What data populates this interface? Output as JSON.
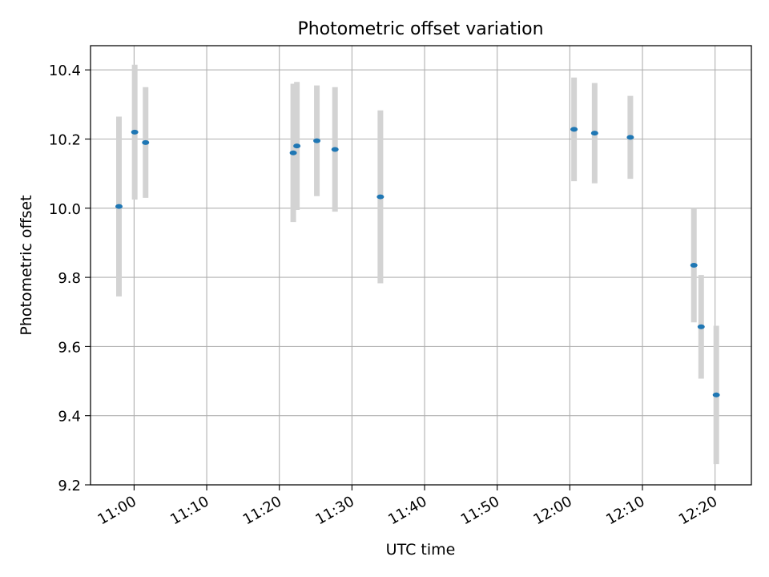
{
  "chart_data": {
    "type": "scatter",
    "title": "Photometric offset variation",
    "xlabel": "UTC time",
    "ylabel": "Photometric offset",
    "x_unit": "time (HH:MM)",
    "xlim": [
      "10:54",
      "12:25"
    ],
    "ylim": [
      9.2,
      10.47
    ],
    "x_ticks": [
      "11:00",
      "11:10",
      "11:20",
      "11:30",
      "11:40",
      "11:50",
      "12:00",
      "12:10",
      "12:20"
    ],
    "y_ticks": [
      "9.2",
      "9.4",
      "9.6",
      "9.8",
      "10.0",
      "10.2",
      "10.4"
    ],
    "grid": true,
    "series": [
      {
        "color": "#1f77b4",
        "errorbar_color": "#d3d3d3",
        "points": [
          {
            "x": "10:57:55",
            "y": 10.005,
            "yerr": 0.26
          },
          {
            "x": "11:00:05",
            "y": 10.22,
            "yerr": 0.195
          },
          {
            "x": "11:01:35",
            "y": 10.19,
            "yerr": 0.16
          },
          {
            "x": "11:21:55",
            "y": 10.16,
            "yerr": 0.2
          },
          {
            "x": "11:22:25",
            "y": 10.18,
            "yerr": 0.185
          },
          {
            "x": "11:25:10",
            "y": 10.195,
            "yerr": 0.16
          },
          {
            "x": "11:27:40",
            "y": 10.17,
            "yerr": 0.18
          },
          {
            "x": "11:33:55",
            "y": 10.033,
            "yerr": 0.25
          },
          {
            "x": "12:00:35",
            "y": 10.228,
            "yerr": 0.15
          },
          {
            "x": "12:03:25",
            "y": 10.217,
            "yerr": 0.145
          },
          {
            "x": "12:08:20",
            "y": 10.205,
            "yerr": 0.12
          },
          {
            "x": "12:17:05",
            "y": 9.835,
            "yerr": 0.165
          },
          {
            "x": "12:18:05",
            "y": 9.657,
            "yerr": 0.15
          },
          {
            "x": "12:20:10",
            "y": 9.46,
            "yerr": 0.2
          }
        ]
      }
    ]
  }
}
